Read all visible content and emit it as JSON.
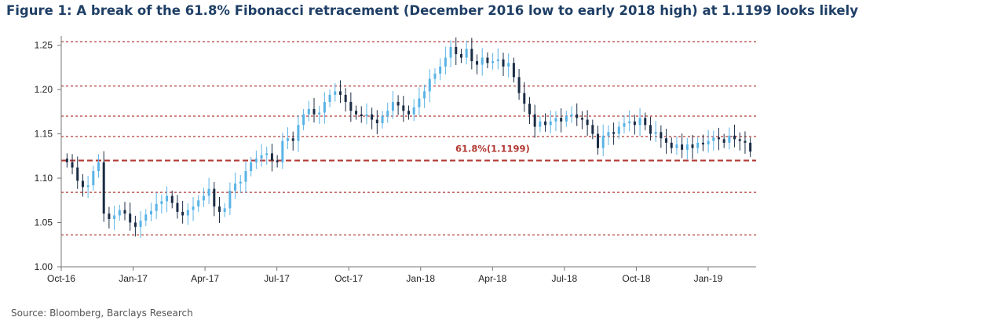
{
  "title": "Figure 1: A break of the 61.8% Fibonacci retracement (December 2016 low to early 2018 high) at 1.1199 looks likely",
  "source": "Source: Bloomberg, Barclays Research",
  "colors": {
    "title": "#1f3f66",
    "up": "#5ab4e6",
    "down": "#1b2d45",
    "fib": "#b23a34",
    "axis": "#777777"
  },
  "chart_data": {
    "type": "candlestick",
    "y_ticks": [
      1.0,
      1.05,
      1.1,
      1.15,
      1.2,
      1.25
    ],
    "ylim": [
      1.0,
      1.255
    ],
    "x_ticks": [
      "Oct-16",
      "Jan-17",
      "Apr-17",
      "Jul-17",
      "Oct-17",
      "Jan-18",
      "Apr-18",
      "Jul-18",
      "Oct-18",
      "Jan-19"
    ],
    "x_range": [
      0,
      29
    ],
    "fibonacci_levels": [
      {
        "value": 1.254,
        "label": ""
      },
      {
        "value": 1.204,
        "label": ""
      },
      {
        "value": 1.17,
        "label": ""
      },
      {
        "value": 1.147,
        "label": ""
      },
      {
        "value": 1.1199,
        "label": "61.8%(1.1199)",
        "major": true
      },
      {
        "value": 1.084,
        "label": ""
      },
      {
        "value": 1.036,
        "label": ""
      }
    ],
    "close": [
      1.118,
      1.112,
      1.097,
      1.09,
      1.092,
      1.108,
      1.118,
      1.06,
      1.054,
      1.058,
      1.064,
      1.06,
      1.05,
      1.045,
      1.052,
      1.059,
      1.063,
      1.071,
      1.074,
      1.08,
      1.072,
      1.062,
      1.058,
      1.064,
      1.068,
      1.075,
      1.08,
      1.088,
      1.068,
      1.062,
      1.066,
      1.086,
      1.094,
      1.096,
      1.108,
      1.118,
      1.122,
      1.126,
      1.128,
      1.12,
      1.118,
      1.142,
      1.145,
      1.142,
      1.16,
      1.172,
      1.178,
      1.172,
      1.174,
      1.186,
      1.194,
      1.198,
      1.194,
      1.186,
      1.176,
      1.172,
      1.17,
      1.172,
      1.166,
      1.162,
      1.17,
      1.176,
      1.186,
      1.182,
      1.176,
      1.172,
      1.18,
      1.19,
      1.198,
      1.212,
      1.218,
      1.226,
      1.236,
      1.248,
      1.24,
      1.236,
      1.246,
      1.232,
      1.228,
      1.236,
      1.23,
      1.232,
      1.234,
      1.226,
      1.23,
      1.214,
      1.196,
      1.184,
      1.172,
      1.158,
      1.164,
      1.16,
      1.164,
      1.168,
      1.164,
      1.17,
      1.172,
      1.168,
      1.166,
      1.16,
      1.15,
      1.134,
      1.148,
      1.152,
      1.15,
      1.158,
      1.162,
      1.164,
      1.16,
      1.168,
      1.16,
      1.15,
      1.152,
      1.145,
      1.14,
      1.134,
      1.138,
      1.132,
      1.138,
      1.134,
      1.14,
      1.138,
      1.142,
      1.146,
      1.144,
      1.14,
      1.148,
      1.144,
      1.142,
      1.14,
      1.13
    ]
  }
}
